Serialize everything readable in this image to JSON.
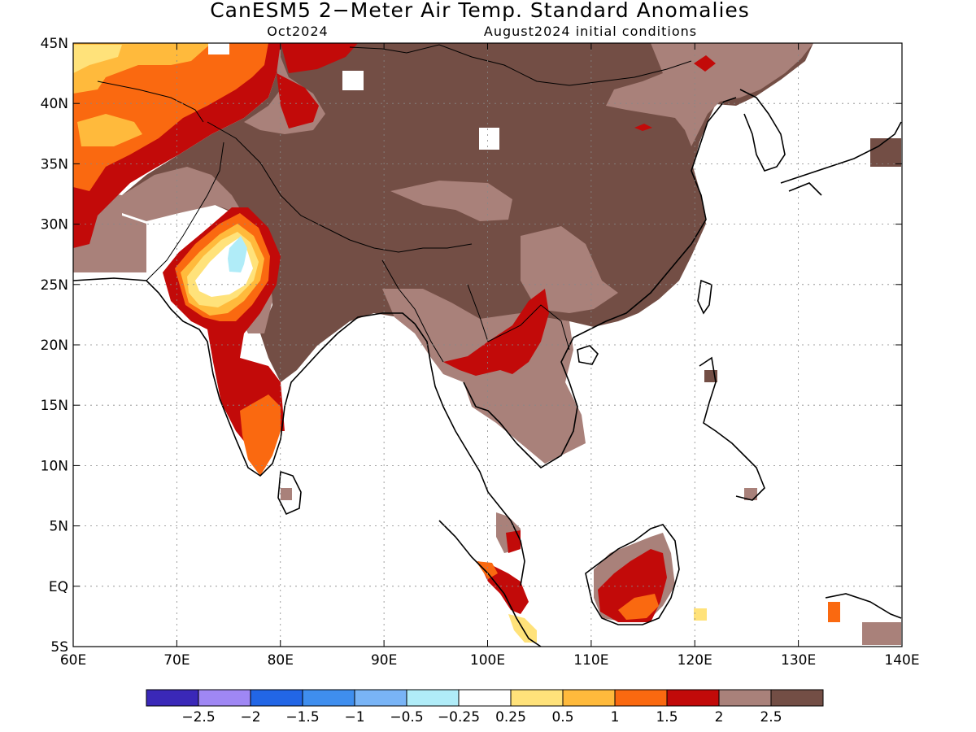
{
  "title": "CanESM5 2−Meter Air Temp. Standard Anomalies",
  "valid_month": "Oct2024",
  "initial_conditions": "August2024 initial conditions",
  "map": {
    "lon_range": [
      60,
      140
    ],
    "lat_range": [
      -5,
      45
    ],
    "x_ticks": [
      "60E",
      "70E",
      "80E",
      "90E",
      "100E",
      "110E",
      "120E",
      "130E",
      "140E"
    ],
    "y_ticks": [
      "45N",
      "40N",
      "35N",
      "30N",
      "25N",
      "20N",
      "15N",
      "10N",
      "5N",
      "EQ",
      "5S"
    ],
    "gridlines": "dotted",
    "ocean_masked": true
  },
  "colorbar": {
    "colors": [
      "#3a28b8",
      "#9f87f4",
      "#2266e6",
      "#3f8eee",
      "#79b4f6",
      "#b0ecf8",
      "#ffffff",
      "#ffe27a",
      "#ffba3c",
      "#fa6910",
      "#c20a09",
      "#a9817a",
      "#734e45"
    ],
    "labels": [
      "−2.5",
      "−2",
      "−1.5",
      "−1",
      "−0.5",
      "−0.25",
      "0.25",
      "0.5",
      "1",
      "1.5",
      "2",
      "2.5"
    ]
  },
  "anomaly_regions": [
    {
      "region": "Mongolia / Tibet / China",
      "class": "> 2.5"
    },
    {
      "region": "Pakistan & NW India interior",
      "class": "0.25 to 1.5"
    },
    {
      "region": "Thar Desert core",
      "class": "-0.5 to -0.25"
    },
    {
      "region": "South India west",
      "class": "1.5 to 2.5"
    },
    {
      "region": "Northern Laos / Myanmar",
      "class": "2 to 2.5"
    },
    {
      "region": "Borneo south",
      "class": "1 to 2.5"
    },
    {
      "region": "Sumatra",
      "class": "0.5 to 2.5"
    }
  ]
}
